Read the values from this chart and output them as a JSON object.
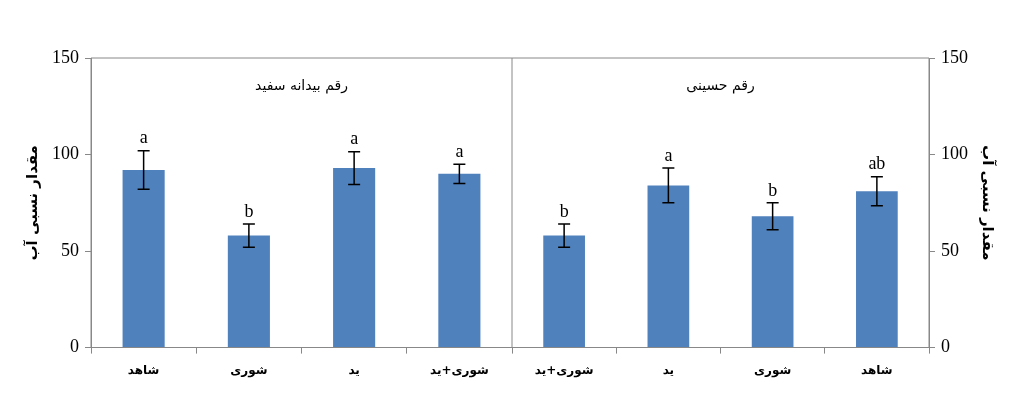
{
  "chart_data": [
    {
      "type": "bar",
      "title": "رقم بیدانه سفید",
      "ylabel": "مقدار نسبی آب",
      "categories": [
        "شاهد",
        "شوری",
        "ید",
        "شوری+ید"
      ],
      "values": [
        92,
        58,
        93,
        90
      ],
      "errors": [
        10,
        6,
        8.5,
        5
      ],
      "color": "#4f81bd",
      "ylim": [
        0,
        150
      ],
      "yticks": [
        0,
        50,
        100,
        150
      ],
      "grid": false,
      "legend": false,
      "annotations": [
        {
          "text": "a",
          "x": "شاهد",
          "y": 102
        },
        {
          "text": "b",
          "x": "شوری",
          "y": 64
        },
        {
          "text": "a",
          "x": "ید",
          "y": 101.5
        },
        {
          "text": "a",
          "x": "شوری+ید",
          "y": 95
        }
      ]
    },
    {
      "type": "bar",
      "title": "رقم حسینی",
      "ylabel": "مقدار نسبی آب",
      "categories": [
        "شوری+ید",
        "ید",
        "شوری",
        "شاهد"
      ],
      "values": [
        58,
        84,
        68,
        81
      ],
      "errors": [
        6,
        9,
        7,
        7.5
      ],
      "color": "#4f81bd",
      "ylim": [
        0,
        150
      ],
      "yticks": [
        0,
        50,
        100,
        150
      ],
      "grid": false,
      "legend": false,
      "annotations": [
        {
          "text": "b",
          "x": "شوری+ید",
          "y": 64
        },
        {
          "text": "a",
          "x": "ید",
          "y": 93
        },
        {
          "text": "b",
          "x": "شوری",
          "y": 74.5
        },
        {
          "text": "ab",
          "x": "شاهد",
          "y": 88.5
        }
      ]
    }
  ]
}
